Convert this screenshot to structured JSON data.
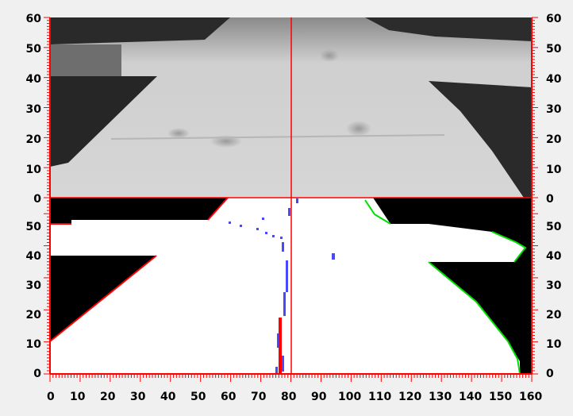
{
  "axes": {
    "x_tick_labels": [
      "0",
      "10",
      "20",
      "30",
      "40",
      "50",
      "60",
      "70",
      "80",
      "90",
      "100",
      "110",
      "120",
      "130",
      "140",
      "150",
      "160"
    ],
    "y_tick_labels_top": [
      "60",
      "50",
      "40",
      "30",
      "20",
      "10",
      "0"
    ],
    "y_tick_labels_bottom": [
      "50",
      "40",
      "30",
      "20",
      "10",
      "0"
    ],
    "x_range": [
      0,
      160
    ],
    "y_range_top": [
      0,
      60
    ],
    "y_range_bottom": [
      0,
      55
    ]
  },
  "panels": {
    "top": "grayscale-camera-image",
    "bottom": "binary-thresholded-image"
  },
  "markers": {
    "crosshair_x": 81,
    "divider_y_top_axis": 0
  },
  "colors": {
    "axis": "#ff0000",
    "crosshair": "#ff0000",
    "left_edge": "#ff0000",
    "right_edge": "#00e000",
    "center_line": "#4444ff",
    "background": "#f0f0f0"
  }
}
